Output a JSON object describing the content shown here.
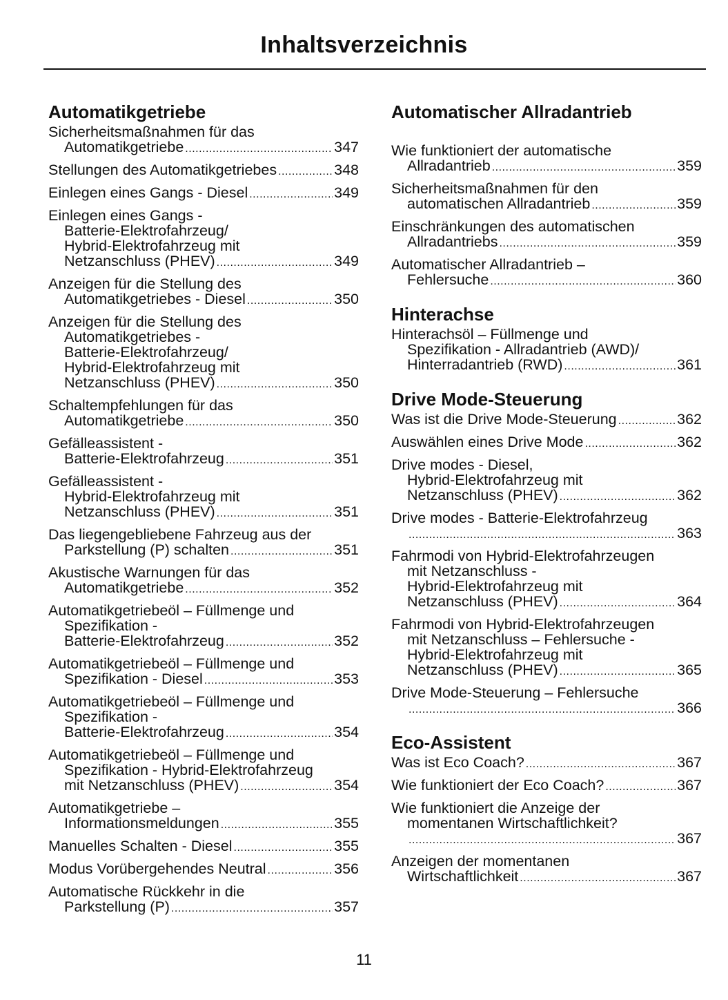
{
  "title": "Inhaltsverzeichnis",
  "page_number": "11",
  "columns": [
    [
      {
        "heading": "Automatikgetriebe",
        "entries": [
          {
            "lines": [
              "Sicherheitsmaßnahmen für das",
              "Automatikgetriebe"
            ],
            "page": "347"
          },
          {
            "lines": [
              "Stellungen des Automatikgetriebes"
            ],
            "page": "348"
          },
          {
            "lines": [
              "Einlegen eines Gangs - Diesel"
            ],
            "page": "349"
          },
          {
            "lines": [
              "Einlegen eines Gangs -",
              "Batterie-Elektrofahrzeug/",
              "Hybrid-Elektrofahrzeug mit",
              "Netzanschluss (PHEV)"
            ],
            "page": "349"
          },
          {
            "lines": [
              "Anzeigen für die Stellung des",
              "Automatikgetriebes - Diesel"
            ],
            "page": "350"
          },
          {
            "lines": [
              "Anzeigen für die Stellung des",
              "Automatikgetriebes -",
              "Batterie-Elektrofahrzeug/",
              "Hybrid-Elektrofahrzeug mit",
              "Netzanschluss (PHEV)"
            ],
            "page": "350"
          },
          {
            "lines": [
              "Schaltempfehlungen für das",
              "Automatikgetriebe"
            ],
            "page": "350"
          },
          {
            "lines": [
              "Gefälleassistent -",
              "Batterie-Elektrofahrzeug"
            ],
            "page": "351"
          },
          {
            "lines": [
              "Gefälleassistent -",
              "Hybrid-Elektrofahrzeug mit",
              "Netzanschluss (PHEV)"
            ],
            "page": "351"
          },
          {
            "lines": [
              "Das liegengebliebene Fahrzeug aus der",
              "Parkstellung (P) schalten"
            ],
            "page": "351"
          },
          {
            "lines": [
              "Akustische Warnungen für das",
              "Automatikgetriebe"
            ],
            "page": "352"
          },
          {
            "lines": [
              "Automatikgetriebeöl – Füllmenge und",
              "Spezifikation -",
              "Batterie-Elektrofahrzeug"
            ],
            "page": "352"
          },
          {
            "lines": [
              "Automatikgetriebeöl – Füllmenge und",
              "Spezifikation - Diesel"
            ],
            "page": "353"
          },
          {
            "lines": [
              "Automatikgetriebeöl – Füllmenge und",
              "Spezifikation -",
              "Batterie-Elektrofahrzeug"
            ],
            "page": "354"
          },
          {
            "lines": [
              "Automatikgetriebeöl – Füllmenge und",
              "Spezifikation - Hybrid-Elektrofahrzeug",
              "mit Netzanschluss (PHEV)"
            ],
            "page": "354"
          },
          {
            "lines": [
              "Automatikgetriebe –",
              "Informationsmeldungen"
            ],
            "page": "355"
          },
          {
            "lines": [
              "Manuelles Schalten - Diesel"
            ],
            "page": "355"
          },
          {
            "lines": [
              "Modus Vorübergehendes Neutral"
            ],
            "page": "356"
          },
          {
            "lines": [
              "Automatische Rückkehr in die",
              "Parkstellung (P)"
            ],
            "page": "357"
          }
        ]
      }
    ],
    [
      {
        "heading": "Automatischer Allradantrieb",
        "entries": [
          {
            "lines": [
              "Wie funktioniert der automatische",
              "Allradantrieb"
            ],
            "page": "359"
          },
          {
            "lines": [
              "Sicherheitsmaßnahmen für den",
              "automatischen Allradantrieb"
            ],
            "page": "359"
          },
          {
            "lines": [
              "Einschränkungen des automatischen",
              "Allradantriebs"
            ],
            "page": "359"
          },
          {
            "lines": [
              "Automatischer Allradantrieb –",
              "Fehlersuche"
            ],
            "page": "360"
          }
        ]
      },
      {
        "heading": "Hinterachse",
        "entries": [
          {
            "lines": [
              "Hinterachsöl – Füllmenge und",
              "Spezifikation - Allradantrieb (AWD)/",
              "Hinterradantrieb (RWD)"
            ],
            "page": "361"
          }
        ]
      },
      {
        "heading": "Drive Mode-Steuerung",
        "entries": [
          {
            "lines": [
              "Was ist die Drive Mode-Steuerung"
            ],
            "page": "362"
          },
          {
            "lines": [
              "Auswählen eines Drive Mode"
            ],
            "page": "362"
          },
          {
            "lines": [
              "Drive modes - Diesel,",
              "Hybrid-Elektrofahrzeug mit",
              "Netzanschluss (PHEV)"
            ],
            "page": "362"
          },
          {
            "lines": [
              "Drive modes - Batterie-Elektrofahrzeug",
              ""
            ],
            "page": "363"
          },
          {
            "lines": [
              "Fahrmodi von Hybrid-Elektrofahrzeugen",
              "mit Netzanschluss -",
              "Hybrid-Elektrofahrzeug mit",
              "Netzanschluss (PHEV)"
            ],
            "page": "364"
          },
          {
            "lines": [
              "Fahrmodi von Hybrid-Elektrofahrzeugen",
              "mit Netzanschluss – Fehlersuche -",
              "Hybrid-Elektrofahrzeug mit",
              "Netzanschluss (PHEV)"
            ],
            "page": "365"
          },
          {
            "lines": [
              "Drive Mode-Steuerung – Fehlersuche",
              ""
            ],
            "page": "366"
          }
        ]
      },
      {
        "heading": "Eco-Assistent",
        "entries": [
          {
            "lines": [
              "Was ist Eco Coach?"
            ],
            "page": "367"
          },
          {
            "lines": [
              "Wie funktioniert der Eco Coach?"
            ],
            "page": "367"
          },
          {
            "lines": [
              "Wie funktioniert die Anzeige der",
              "momentanen Wirtschaftlichkeit?",
              ""
            ],
            "page": "367"
          },
          {
            "lines": [
              "Anzeigen der momentanen",
              "Wirtschaftlichkeit"
            ],
            "page": "367"
          }
        ]
      }
    ]
  ]
}
